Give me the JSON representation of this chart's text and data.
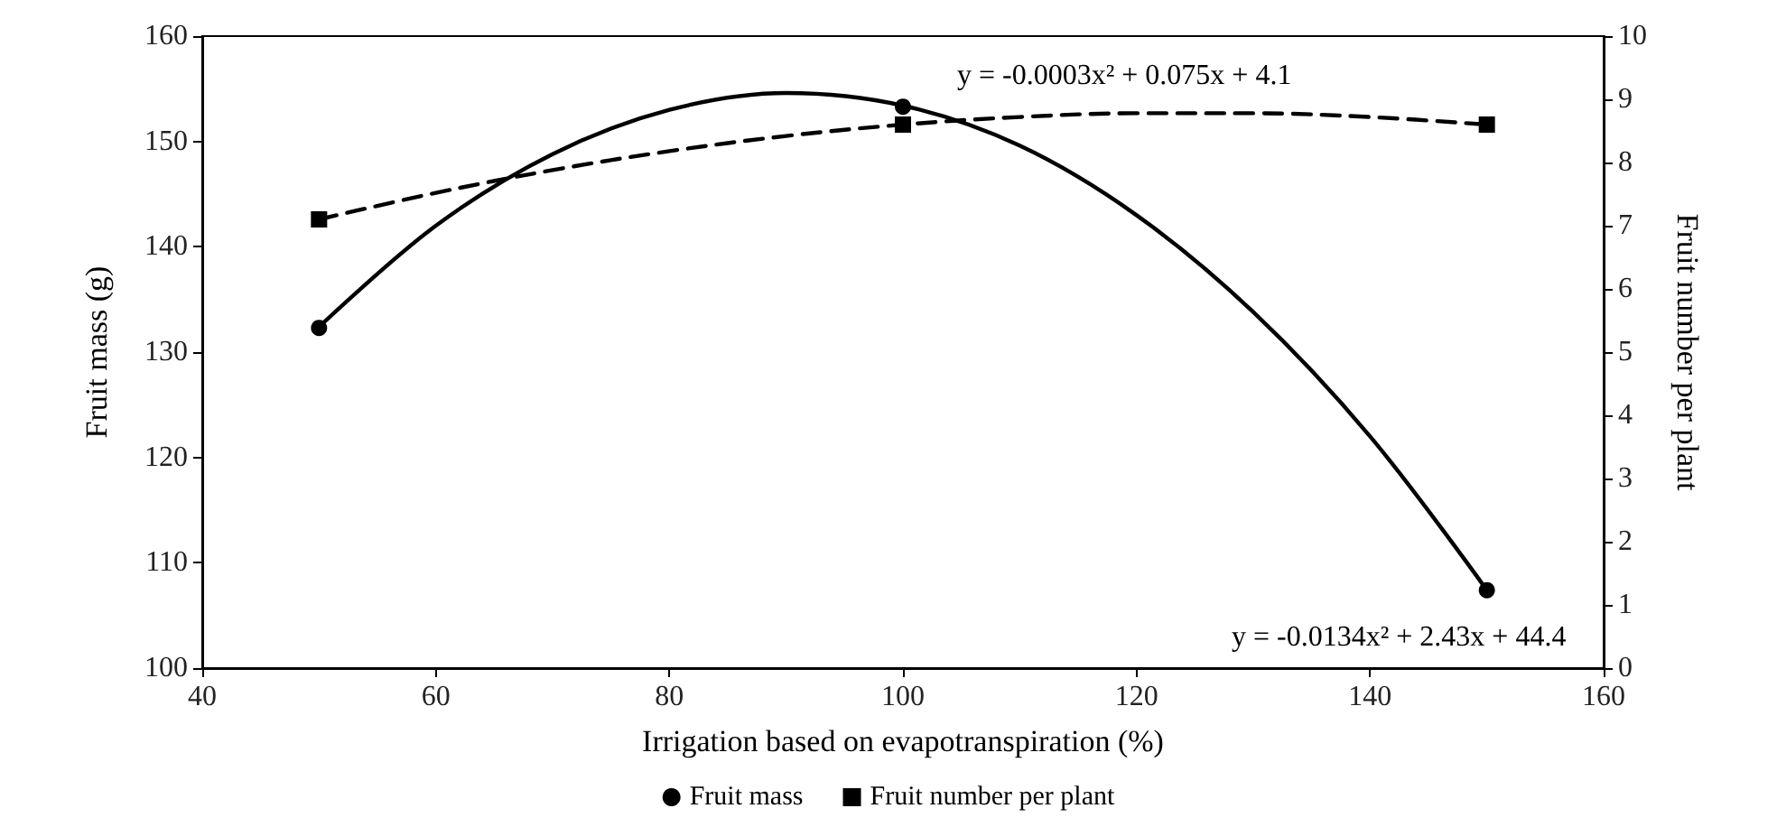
{
  "chart_data": {
    "type": "scatter",
    "xlabel": "Irrigation based on evapotranspiration (%)",
    "ylabel": "Fruit mass (g)",
    "y2label": "Fruit number per plant",
    "xlim": [
      40,
      160
    ],
    "xticks": [
      40,
      60,
      80,
      100,
      120,
      140,
      160
    ],
    "ylim": [
      100,
      160
    ],
    "yticks": [
      100,
      110,
      120,
      130,
      140,
      150,
      160
    ],
    "y2lim": [
      0,
      10
    ],
    "y2ticks": [
      0,
      1,
      2,
      3,
      4,
      5,
      6,
      7,
      8,
      9,
      10
    ],
    "grid": false,
    "legend": "bottom",
    "annotations": [
      "y = -0.0003x² + 0.075x + 4.1",
      "y = -0.0134x² + 2.43x + 44.4"
    ],
    "series": [
      {
        "name": "Fruit mass",
        "marker": "circle",
        "color": "#000000",
        "x": [
          50,
          100,
          150
        ],
        "values": [
          132.3,
          153.3,
          107.4
        ]
      },
      {
        "name": "Fruit number per plant",
        "marker": "square",
        "axis": "y2",
        "color": "#000000",
        "x": [
          50,
          100,
          150
        ],
        "values": [
          7.1,
          8.6,
          8.6
        ]
      },
      {
        "type": "line",
        "marker": "none",
        "line_style": "solid",
        "color": "#000000",
        "x": [
          50,
          60,
          70,
          80,
          90,
          100,
          110,
          120,
          130,
          140,
          150
        ],
        "values": [
          132.4,
          142.0,
          148.8,
          153.0,
          154.6,
          153.4,
          149.6,
          143.0,
          133.8,
          122.0,
          107.4
        ]
      },
      {
        "type": "line",
        "marker": "none",
        "line_style": "dashed",
        "axis": "y2",
        "color": "#000000",
        "x": [
          50,
          60,
          70,
          80,
          90,
          100,
          110,
          120,
          130,
          140,
          150
        ],
        "values": [
          7.1,
          7.52,
          7.88,
          8.18,
          8.42,
          8.6,
          8.72,
          8.78,
          8.78,
          8.72,
          8.6
        ]
      }
    ]
  }
}
